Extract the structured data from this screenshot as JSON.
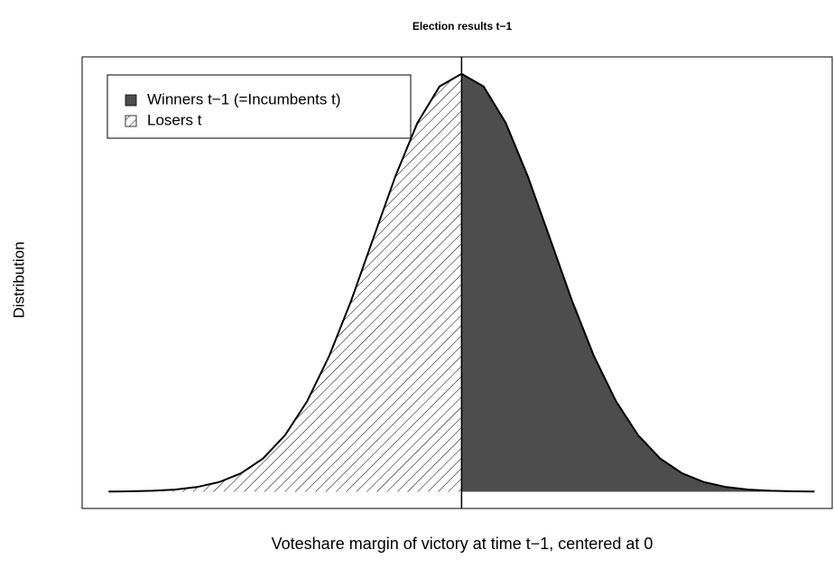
{
  "chart_data": {
    "type": "area",
    "title": "Election results t−1",
    "x_label": "Voteshare margin of victory at time t−1, centered at 0",
    "y_label": "Distribution",
    "xlim": [
      -4.3,
      4.2
    ],
    "ylim": [
      -0.016,
      0.415
    ],
    "vline": 0,
    "legend": "top-left",
    "series": [
      {
        "name": "Winners t−1 (=Incumbents t)",
        "color": "#4d4d4d",
        "pattern": "solid",
        "x": [
          0,
          0.25,
          0.5,
          0.75,
          1,
          1.25,
          1.5,
          1.75,
          2,
          2.25,
          2.5,
          2.75,
          3,
          3.25,
          3.5,
          3.75,
          4
        ],
        "values": [
          0.3989,
          0.3867,
          0.3521,
          0.3011,
          0.242,
          0.1826,
          0.1295,
          0.0863,
          0.054,
          0.0317,
          0.0175,
          0.0091,
          0.0044,
          0.002,
          0.0009,
          0.0004,
          0.0001
        ]
      },
      {
        "name": "Losers t",
        "color": "#000000",
        "pattern": "hatch",
        "x": [
          -4,
          -3.75,
          -3.5,
          -3.25,
          -3,
          -2.75,
          -2.5,
          -2.25,
          -2,
          -1.75,
          -1.5,
          -1.25,
          -1,
          -0.75,
          -0.5,
          -0.25,
          0
        ],
        "values": [
          0.0001,
          0.0004,
          0.0009,
          0.002,
          0.0044,
          0.0091,
          0.0175,
          0.0317,
          0.054,
          0.0863,
          0.1295,
          0.1826,
          0.242,
          0.3011,
          0.3521,
          0.3867,
          0.3989
        ]
      }
    ]
  }
}
